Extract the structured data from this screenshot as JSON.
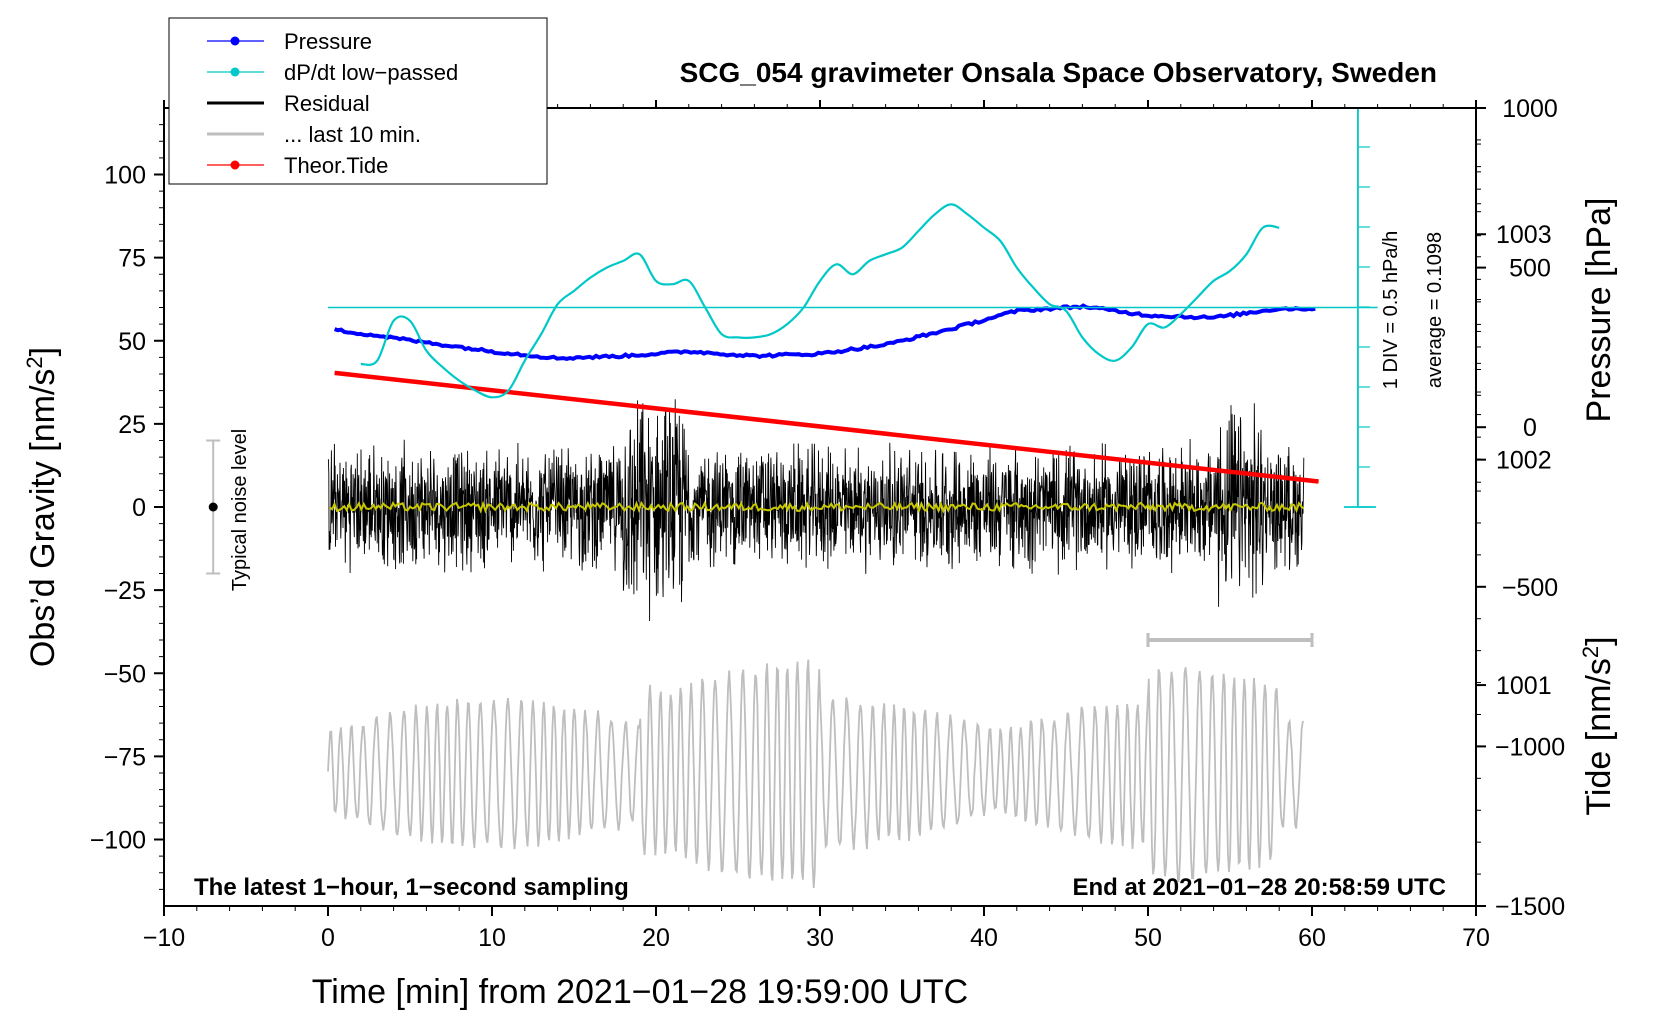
{
  "chart_data": {
    "type": "line",
    "title": "SCG_054 gravimeter Onsala Space Observatory, Sweden",
    "xlabel": "Time [min] from 2021−01−28 19:59:00 UTC",
    "ylabel_left_main": "Obs’d Gravity [nm/s",
    "ylabel_left_sup": "2",
    "ylabel_left_tail": "]",
    "ylabel_right_pressure": "Pressure [hPa]",
    "ylabel_right_tide_main": "Tide [nm/s",
    "ylabel_right_tide_sup": "2",
    "ylabel_right_tide_tail": "]",
    "xlim": [
      -10,
      70
    ],
    "ylim": [
      -120,
      120
    ],
    "pressure_lim": [
      1000.02,
      1003.56
    ],
    "tide_lim": [
      -1500,
      1000
    ],
    "x_ticks": [
      "−10",
      "0",
      "10",
      "20",
      "30",
      "40",
      "50",
      "60",
      "70"
    ],
    "x_tick_values": [
      -10,
      0,
      10,
      20,
      30,
      40,
      50,
      60,
      70
    ],
    "y_ticks": [
      "100",
      "75",
      "50",
      "25",
      "0",
      "−25",
      "−50",
      "−75",
      "−100"
    ],
    "y_tick_values": [
      100,
      75,
      50,
      25,
      0,
      -25,
      -50,
      -75,
      -100
    ],
    "pressure_ticks": [
      "1003",
      "1002",
      "1001"
    ],
    "pressure_tick_values": [
      1003,
      1002,
      1001
    ],
    "tide_ticks": [
      "1000",
      "500",
      "0",
      "−500",
      "−1000",
      "−1500"
    ],
    "tide_tick_values": [
      1000,
      500,
      0,
      -500,
      -1000,
      -1500
    ],
    "legend": [
      {
        "label": "Pressure",
        "color": "#0000ff",
        "marker": true
      },
      {
        "label": "dP/dt low−passed",
        "color": "#00c8c8",
        "marker": true
      },
      {
        "label": "Residual",
        "color": "#000000",
        "marker": false
      },
      {
        "label": "... last 10 min.",
        "color": "#bebebe",
        "marker": false
      },
      {
        "label": "Theor.Tide",
        "color": "#ff0000",
        "marker": true
      }
    ],
    "series": [
      {
        "name": "Pressure",
        "axis": "pressure",
        "color": "#0000ff",
        "x": [
          0,
          3,
          6,
          10,
          14,
          18,
          22,
          26,
          30,
          34,
          38,
          42,
          46,
          50,
          54,
          58,
          60
        ],
        "y": [
          1002.58,
          1002.55,
          1002.52,
          1002.48,
          1002.45,
          1002.46,
          1002.48,
          1002.46,
          1002.47,
          1002.51,
          1002.58,
          1002.66,
          1002.68,
          1002.64,
          1002.63,
          1002.67,
          1002.67
        ]
      },
      {
        "name": "dP/dt low-passed",
        "axis": "gravity",
        "color": "#00c8c8",
        "x": [
          2,
          3,
          4,
          5,
          6,
          7,
          8,
          9,
          10,
          11,
          12,
          13,
          14,
          15,
          16,
          17,
          18,
          19,
          20,
          21,
          22,
          23,
          24,
          25,
          26,
          27,
          28,
          29,
          30,
          31,
          32,
          33,
          34,
          35,
          36,
          37,
          38,
          39,
          40,
          41,
          42,
          43,
          44,
          45,
          46,
          47,
          48,
          49,
          50,
          51,
          52,
          53,
          54,
          55,
          56,
          57,
          58
        ],
        "y": [
          43,
          44,
          56,
          56,
          47,
          42,
          38,
          35,
          33,
          35,
          44,
          52,
          61,
          65,
          69,
          72,
          74,
          76,
          68,
          67,
          68,
          60,
          52,
          51,
          51,
          52,
          55,
          60,
          68,
          73,
          70,
          74,
          76,
          78,
          83,
          88,
          91,
          88,
          84,
          80,
          72,
          66,
          61,
          59,
          51,
          46,
          44,
          48,
          55,
          54,
          58,
          63,
          68,
          71,
          76,
          84,
          84
        ]
      },
      {
        "name": "Theor.Tide",
        "axis": "tide",
        "color": "#ff0000",
        "x": [
          0.4,
          60.4
        ],
        "y": [
          170,
          -170
        ]
      }
    ],
    "residual_envelope_note": "black residual oscillating within about ±40 nm/s² around 0",
    "mean_line": {
      "name": "Residual mean",
      "color": "#c8c800",
      "value": 0
    },
    "last_10_min_note": "grey trace is the last 10 minutes, offset around −80 nm/s²",
    "reference_line_gravity": 60,
    "dpdt_scale_label": "1 DIV = 0.5 hPa/h",
    "dpdt_average_label": "average = 0.1098",
    "noise_label": "Typical noise level",
    "noise_range": [
      -20,
      20
    ],
    "window_bar_range_min": [
      50,
      60
    ],
    "window_bar_level": -40,
    "bottom_left_note": "The latest 1−hour, 1−second sampling",
    "bottom_right_note": "End at 2021−01−28 20:58:59 UTC"
  }
}
